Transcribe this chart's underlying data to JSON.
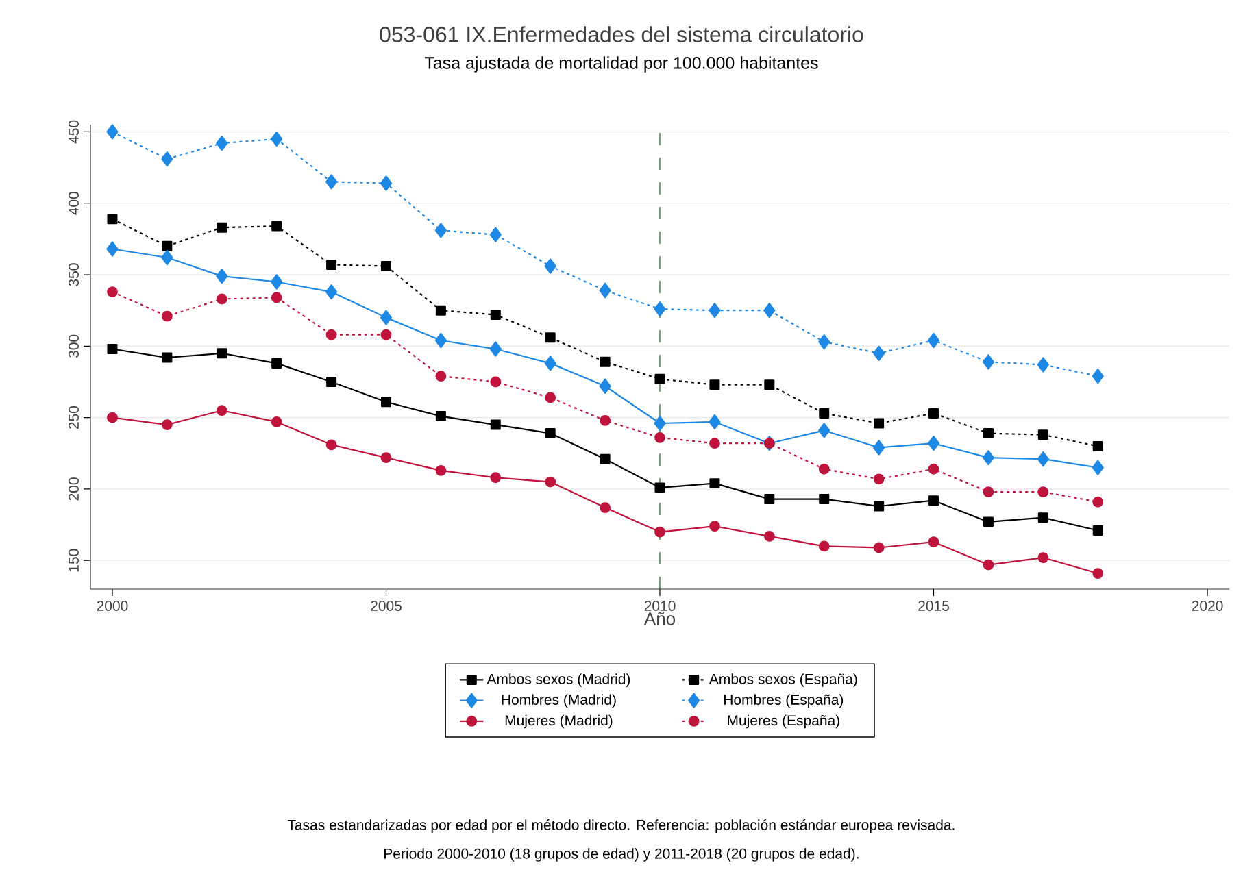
{
  "chart_data": {
    "type": "line",
    "title": "053-061 IX.Enfermedades del sistema circulatorio",
    "subtitle": "Tasa ajustada de mortalidad por 100.000 habitantes",
    "xlabel": "Año",
    "x": [
      2000,
      2001,
      2002,
      2003,
      2004,
      2005,
      2006,
      2007,
      2008,
      2009,
      2010,
      2011,
      2012,
      2013,
      2014,
      2015,
      2016,
      2017,
      2018
    ],
    "series": [
      {
        "name": "Ambos sexos (Madrid)",
        "color": "#000000",
        "marker": "square",
        "line_style": "solid",
        "values": [
          298,
          292,
          295,
          288,
          275,
          261,
          251,
          245,
          239,
          221,
          201,
          204,
          193,
          193,
          188,
          192,
          177,
          180,
          171
        ]
      },
      {
        "name": "Ambos sexos (España)",
        "color": "#000000",
        "marker": "square",
        "line_style": "dotted",
        "values": [
          389,
          370,
          383,
          384,
          357,
          356,
          325,
          322,
          306,
          289,
          277,
          273,
          273,
          253,
          246,
          253,
          239,
          238,
          230
        ]
      },
      {
        "name": "Hombres (Madrid)",
        "color": "#1e88e5",
        "marker": "diamond",
        "line_style": "solid",
        "values": [
          368,
          362,
          349,
          345,
          338,
          320,
          304,
          298,
          288,
          272,
          246,
          247,
          232,
          241,
          229,
          232,
          222,
          221,
          215
        ]
      },
      {
        "name": "Hombres (España)",
        "color": "#1e88e5",
        "marker": "diamond",
        "line_style": "dotted",
        "values": [
          450,
          431,
          442,
          445,
          415,
          414,
          381,
          378,
          356,
          339,
          326,
          325,
          325,
          303,
          295,
          304,
          289,
          287,
          279
        ]
      },
      {
        "name": "Mujeres (Madrid)",
        "color": "#c0143c",
        "marker": "circle",
        "line_style": "solid",
        "values": [
          250,
          245,
          255,
          247,
          231,
          222,
          213,
          208,
          205,
          187,
          170,
          174,
          167,
          160,
          159,
          163,
          147,
          152,
          141
        ]
      },
      {
        "name": "Mujeres (España)",
        "color": "#c0143c",
        "marker": "circle",
        "line_style": "dotted",
        "values": [
          338,
          321,
          333,
          334,
          308,
          308,
          279,
          275,
          264,
          248,
          236,
          232,
          232,
          214,
          207,
          214,
          198,
          198,
          191
        ]
      }
    ],
    "xlim": [
      1999.6,
      2020.4
    ],
    "ylim": [
      130,
      455
    ],
    "xticks": [
      2000,
      2005,
      2010,
      2015,
      2020
    ],
    "yticks": [
      150,
      200,
      250,
      300,
      350,
      400,
      450
    ],
    "grid": "y",
    "legend": "bottom",
    "ref_lines": [
      {
        "axis": "x",
        "value": 2010,
        "color": "#2e7d32",
        "line_style": "dashed"
      }
    ],
    "annotations": [
      "Tasas estandarizadas por edad por el método directo. Referencia: población estándar europea revisada.",
      "Periodo 2000-2010 (18 grupos de edad) y 2011-2018 (20 grupos de edad)."
    ]
  }
}
